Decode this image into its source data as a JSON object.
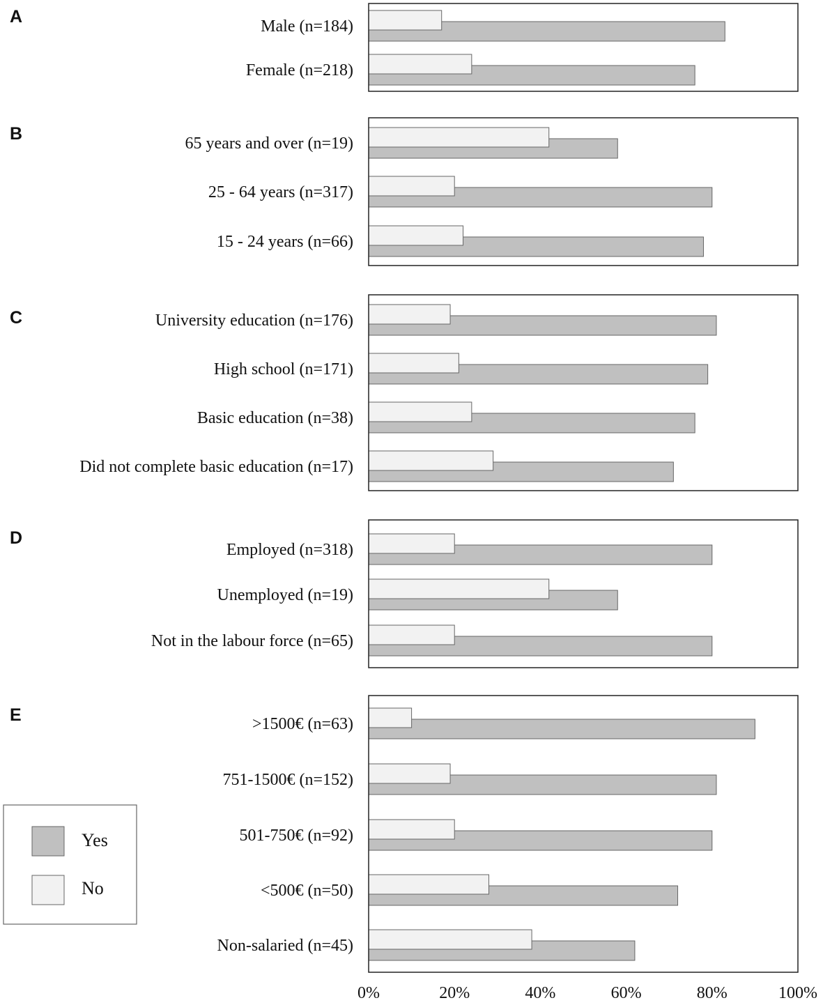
{
  "chart_data": {
    "type": "bar",
    "orientation": "horizontal",
    "series_names": [
      "Yes",
      "No"
    ],
    "colors": {
      "yes": "#c0c0c0",
      "no": "#f2f2f2",
      "stroke": "#666666",
      "frame": "#222222"
    },
    "xlim": [
      0,
      100
    ],
    "x_ticks": [
      "0%",
      "20%",
      "40%",
      "60%",
      "80%",
      "100%"
    ],
    "legend": {
      "position": "bottom-left",
      "yes_label": "Yes",
      "no_label": "No"
    },
    "panels": [
      {
        "letter": "A",
        "categories": [
          {
            "label": "Male (n=184)",
            "yes": 83,
            "no": 17
          },
          {
            "label": "Female (n=218)",
            "yes": 76,
            "no": 24
          }
        ]
      },
      {
        "letter": "B",
        "categories": [
          {
            "label": "65 years and over (n=19)",
            "yes": 58,
            "no": 42
          },
          {
            "label": "25 - 64 years (n=317)",
            "yes": 80,
            "no": 20
          },
          {
            "label": "15 - 24 years (n=66)",
            "yes": 78,
            "no": 22
          }
        ]
      },
      {
        "letter": "C",
        "categories": [
          {
            "label": "University education (n=176)",
            "yes": 81,
            "no": 19
          },
          {
            "label": "High school (n=171)",
            "yes": 79,
            "no": 21
          },
          {
            "label": "Basic education (n=38)",
            "yes": 76,
            "no": 24
          },
          {
            "label": "Did not complete basic education (n=17)",
            "yes": 71,
            "no": 29
          }
        ]
      },
      {
        "letter": "D",
        "categories": [
          {
            "label": "Employed (n=318)",
            "yes": 80,
            "no": 20
          },
          {
            "label": "Unemployed (n=19)",
            "yes": 58,
            "no": 42
          },
          {
            "label": "Not in the labour force (n=65)",
            "yes": 80,
            "no": 20
          }
        ]
      },
      {
        "letter": "E",
        "categories": [
          {
            "label": ">1500€ (n=63)",
            "yes": 90,
            "no": 10
          },
          {
            "label": "751-1500€ (n=152)",
            "yes": 81,
            "no": 19
          },
          {
            "label": "501-750€ (n=92)",
            "yes": 80,
            "no": 20
          },
          {
            "label": "<500€ (n=50)",
            "yes": 72,
            "no": 28
          },
          {
            "label": "Non-salaried (n=45)",
            "yes": 62,
            "no": 38
          }
        ]
      }
    ]
  }
}
